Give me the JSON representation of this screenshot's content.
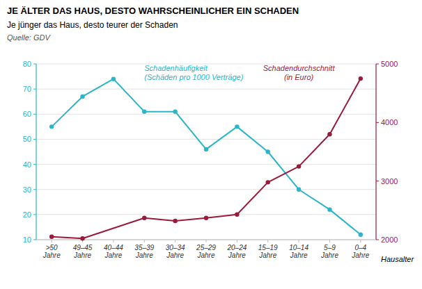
{
  "chart_data": {
    "type": "line",
    "title": "JE ÄLTER DAS HAUS, DESTO WAHRSCHEINLICHER EIN SCHADEN",
    "subtitle": "Je jünger das Haus, desto teurer der Schaden",
    "source": "Quelle: GDV",
    "xlabel": "Hausalter",
    "categories": [
      ">50\nJahre",
      "49–45\nJahre",
      "40–44\nJahre",
      "35–39\nJahre",
      "30–34\nJahre",
      "25–29\nJahre",
      "20–24\nJahre",
      "15–19\nJahre",
      "10–14\nJahre",
      "5–9\nJahre",
      "0–4\nJahre"
    ],
    "series": [
      {
        "name": "Schadenhäufigkeit\n(Schäden pro 1000 Verträge)",
        "color": "#2ab5c8",
        "marker": "circle",
        "values": [
          55,
          67,
          74,
          61,
          61,
          46,
          55,
          45,
          30,
          22,
          12
        ]
      },
      {
        "name": "Schadendurchschnitt\n(in Euro)",
        "color": "#9b1a3a",
        "marker": "circle",
        "axis": "y2",
        "x": [
          ">50\nJahre",
          "49–45\nJahre",
          "35–39\nJahre",
          "30–34\nJahre",
          "25–29\nJahre",
          "20–24\nJahre",
          "15–19\nJahre",
          "10–14\nJahre",
          "5–9\nJahre",
          "0–4\nJahre"
        ],
        "values": [
          2050,
          2020,
          2370,
          2320,
          2370,
          2430,
          2980,
          3250,
          3800,
          4750
        ]
      }
    ],
    "ylim": [
      10,
      80
    ],
    "yticks": [
      10,
      20,
      30,
      40,
      50,
      60,
      70,
      80
    ],
    "y2lim": [
      2000,
      5000
    ],
    "y2ticks": [
      2000,
      3000,
      4000,
      5000
    ],
    "grid": true
  }
}
